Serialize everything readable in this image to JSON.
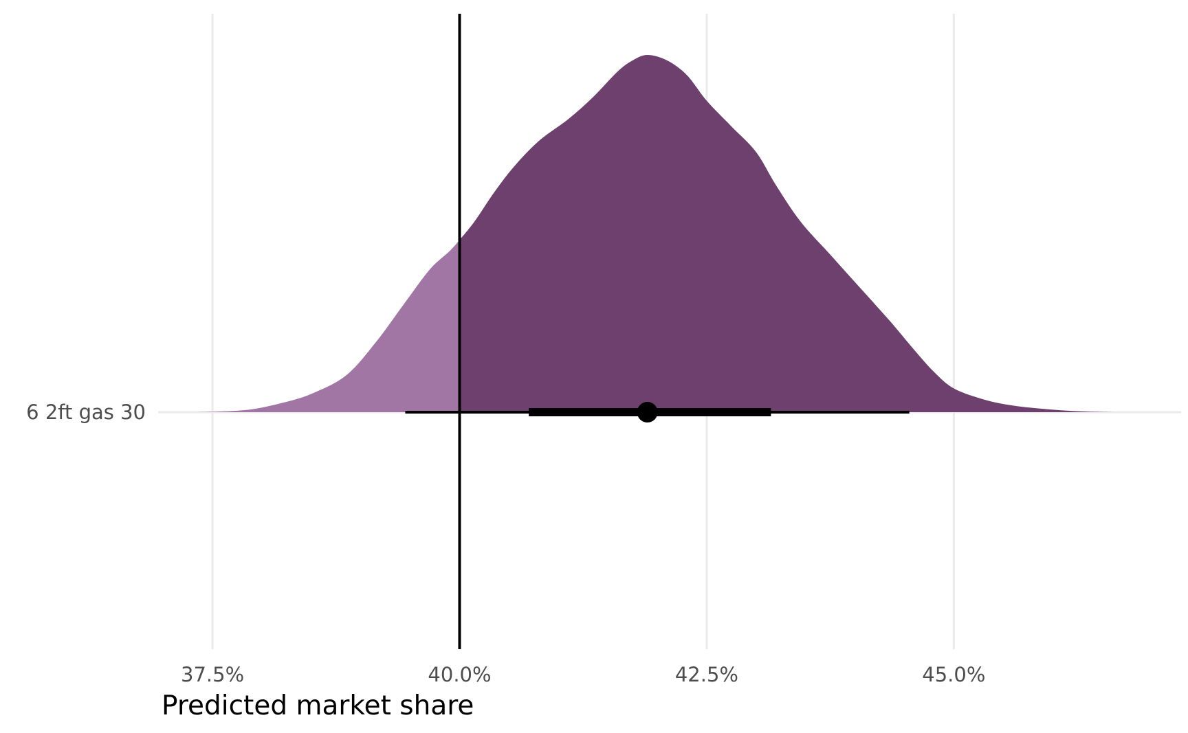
{
  "chart_data": {
    "type": "area",
    "title": "",
    "xlabel": "Predicted market share",
    "ylabel": "",
    "xlim": [
      36.95,
      47.3
    ],
    "x_ticks": [
      37.5,
      40.0,
      42.5,
      45.0
    ],
    "x_tick_labels": [
      "37.5%",
      "40.0%",
      "42.5%",
      "45.0%"
    ],
    "y_categories": [
      "6 2ft gas 30"
    ],
    "grid": "vertical and horizontal major lines",
    "legend": "none",
    "reference_line": 40.0,
    "density": {
      "x": [
        37.35,
        37.6,
        37.9,
        38.2,
        38.5,
        38.85,
        39.15,
        39.45,
        39.7,
        39.9,
        40.0,
        40.15,
        40.35,
        40.55,
        40.8,
        41.1,
        41.35,
        41.6,
        41.75,
        41.9,
        42.1,
        42.3,
        42.5,
        42.75,
        43.0,
        43.2,
        43.45,
        43.75,
        44.05,
        44.35,
        44.6,
        44.8,
        45.0,
        45.3,
        45.6,
        45.95,
        46.3,
        46.6
      ],
      "density": [
        0.0,
        0.002,
        0.008,
        0.025,
        0.05,
        0.1,
        0.19,
        0.3,
        0.39,
        0.44,
        0.47,
        0.52,
        0.6,
        0.67,
        0.74,
        0.8,
        0.86,
        0.93,
        0.96,
        0.975,
        0.96,
        0.92,
        0.85,
        0.78,
        0.71,
        0.62,
        0.52,
        0.43,
        0.34,
        0.25,
        0.17,
        0.11,
        0.065,
        0.035,
        0.018,
        0.008,
        0.002,
        0.0
      ]
    },
    "shading": {
      "threshold": 40.0,
      "below_color": "#a276a4",
      "above_color": "#6e406e"
    },
    "point_interval": {
      "point": 41.9,
      "inner_interval": [
        40.7,
        43.15
      ],
      "outer_interval": [
        39.45,
        44.55
      ],
      "color": "#000000"
    },
    "reference_line_color": "#000000"
  }
}
